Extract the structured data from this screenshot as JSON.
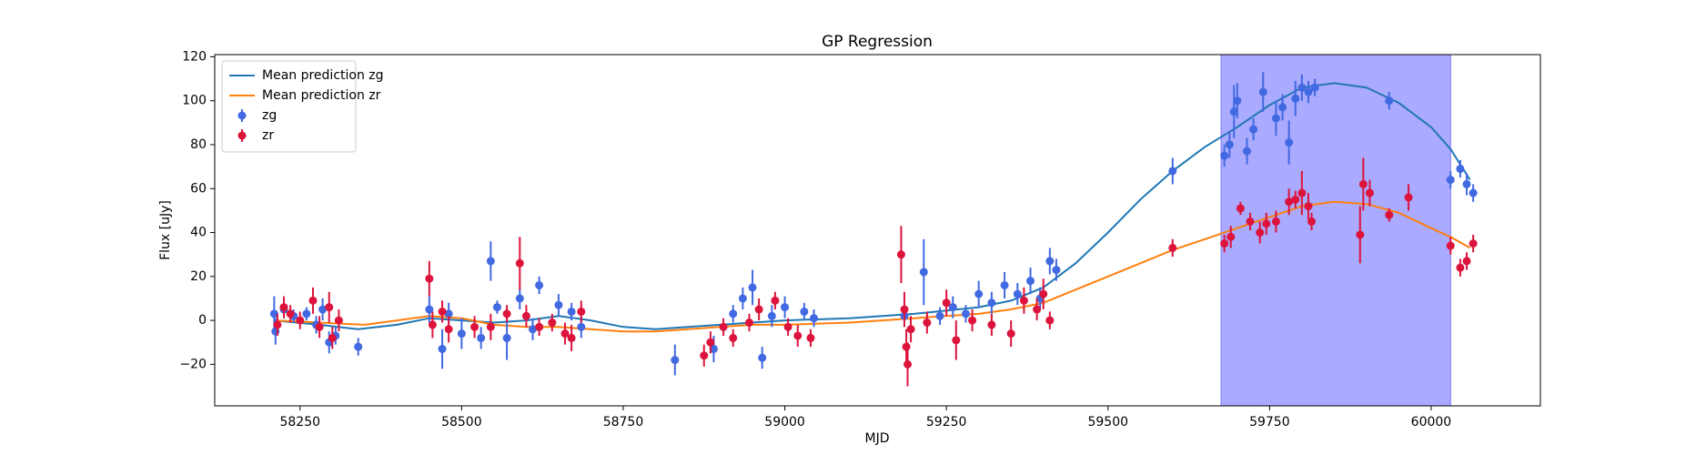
{
  "chart_data": {
    "type": "scatter",
    "title": "GP Regression",
    "xlabel": "MJD",
    "ylabel": "Flux [uJy]",
    "xlim": [
      58118,
      60169
    ],
    "ylim": [
      -38.9,
      121
    ],
    "xticks": [
      58250,
      58500,
      58750,
      59000,
      59250,
      59500,
      59750,
      60000
    ],
    "yticks": [
      {
        "value": -20,
        "label": "−20"
      },
      0,
      20,
      40,
      60,
      80,
      100,
      120
    ],
    "legend": "upper left",
    "spans": [
      {
        "x": [
          59675,
          60030
        ],
        "color": "#aaaaff"
      }
    ],
    "series": [
      {
        "name": "Mean prediction zg",
        "type": "line",
        "color": "#1f77b4",
        "x": [
          58210,
          58280,
          58340,
          58400,
          58450,
          58500,
          58550,
          58600,
          58650,
          58700,
          58750,
          58800,
          58850,
          58900,
          58950,
          59000,
          59100,
          59200,
          59300,
          59350,
          59400,
          59450,
          59500,
          59550,
          59600,
          59650,
          59700,
          59750,
          59800,
          59850,
          59900,
          59950,
          60000,
          60030,
          60060
        ],
        "values": [
          0,
          -2,
          -4,
          -2,
          1,
          0,
          -1,
          0,
          2,
          0,
          -3,
          -4,
          -3,
          -2,
          -1,
          0,
          1,
          3,
          6,
          9,
          15,
          26,
          40,
          55,
          68,
          79,
          88,
          98,
          106,
          108,
          106,
          99,
          88,
          78,
          64
        ]
      },
      {
        "name": "Mean prediction zr",
        "type": "line",
        "color": "#ff7f0e",
        "x": [
          58210,
          58280,
          58350,
          58400,
          58450,
          58500,
          58550,
          58600,
          58650,
          58700,
          58750,
          58800,
          58850,
          58900,
          58950,
          59000,
          59100,
          59200,
          59300,
          59350,
          59400,
          59450,
          59500,
          59550,
          59600,
          59650,
          59700,
          59750,
          59800,
          59850,
          59900,
          59950,
          60000,
          60030,
          60060
        ],
        "values": [
          0,
          -1,
          -2,
          0,
          2,
          1,
          -2,
          -3,
          -3,
          -4,
          -5,
          -5,
          -4,
          -3,
          -2,
          -2,
          -1,
          1,
          3,
          5,
          8,
          14,
          20,
          26,
          32,
          37,
          42,
          47,
          52,
          54,
          53,
          49,
          42,
          38,
          33
        ]
      },
      {
        "name": "zg",
        "type": "errorbar",
        "color": "#4169e1",
        "x": [
          58210,
          58212,
          58225,
          58240,
          58260,
          58275,
          58285,
          58295,
          58305,
          58340,
          58450,
          58470,
          58480,
          58500,
          58530,
          58545,
          58555,
          58570,
          58590,
          58610,
          58620,
          58650,
          58670,
          58685,
          58830,
          58890,
          58920,
          58935,
          58950,
          58965,
          58980,
          59000,
          59030,
          59045,
          59185,
          59215,
          59240,
          59260,
          59280,
          59300,
          59320,
          59340,
          59360,
          59380,
          59395,
          59410,
          59420,
          59600,
          59680,
          59688,
          59695,
          59700,
          59715,
          59725,
          59740,
          59760,
          59770,
          59780,
          59790,
          59800,
          59810,
          59820,
          59935,
          60030,
          60045,
          60055,
          60065
        ],
        "values": [
          3,
          -5,
          5,
          2,
          3,
          -2,
          5,
          -10,
          -7,
          -12,
          5,
          -13,
          3,
          -6,
          -8,
          27,
          6,
          -8,
          10,
          -4,
          16,
          7,
          4,
          -3,
          -18,
          -13,
          3,
          10,
          15,
          -17,
          2,
          6,
          4,
          1,
          2,
          22,
          2,
          6,
          3,
          12,
          8,
          16,
          12,
          18,
          10,
          27,
          23,
          68,
          75,
          80,
          95,
          100,
          77,
          87,
          104,
          92,
          97,
          81,
          101,
          106,
          104,
          106,
          100,
          64,
          69,
          62,
          58
        ],
        "errors": [
          8,
          6,
          4,
          3,
          3,
          4,
          5,
          5,
          4,
          4,
          6,
          9,
          5,
          7,
          5,
          9,
          3,
          10,
          5,
          5,
          4,
          5,
          4,
          5,
          7,
          6,
          4,
          5,
          8,
          5,
          5,
          5,
          4,
          4,
          5,
          15,
          4,
          5,
          4,
          6,
          5,
          6,
          5,
          6,
          5,
          6,
          5,
          6,
          5,
          6,
          12,
          8,
          6,
          5,
          9,
          8,
          6,
          10,
          8,
          6,
          5,
          4,
          4,
          4,
          4,
          5,
          4
        ]
      },
      {
        "name": "zr",
        "type": "errorbar",
        "color": "#dc143c",
        "x": [
          58215,
          58225,
          58235,
          58250,
          58270,
          58280,
          58295,
          58300,
          58310,
          58450,
          58455,
          58470,
          58480,
          58520,
          58545,
          58570,
          58590,
          58600,
          58620,
          58640,
          58660,
          58670,
          58685,
          58875,
          58885,
          58905,
          58920,
          58945,
          58960,
          58985,
          59005,
          59020,
          59040,
          59180,
          59185,
          59188,
          59190,
          59195,
          59220,
          59250,
          59265,
          59290,
          59320,
          59350,
          59370,
          59390,
          59400,
          59410,
          59600,
          59680,
          59690,
          59705,
          59720,
          59735,
          59745,
          59760,
          59780,
          59790,
          59800,
          59810,
          59815,
          59890,
          59895,
          59905,
          59935,
          59965,
          60030,
          60045,
          60055,
          60065
        ],
        "values": [
          -2,
          6,
          3,
          0,
          9,
          -3,
          6,
          -8,
          0,
          19,
          -2,
          4,
          -4,
          -3,
          -3,
          3,
          26,
          2,
          -3,
          -1,
          -6,
          -8,
          4,
          -16,
          -10,
          -3,
          -8,
          -1,
          5,
          9,
          -3,
          -7,
          -8,
          30,
          5,
          -12,
          -20,
          -4,
          -1,
          8,
          -9,
          0,
          -2,
          -6,
          9,
          5,
          12,
          0,
          33,
          35,
          38,
          51,
          45,
          40,
          44,
          45,
          54,
          55,
          58,
          52,
          45,
          39,
          62,
          58,
          48,
          56,
          34,
          24,
          27,
          35
        ],
        "errors": [
          5,
          5,
          4,
          4,
          6,
          5,
          7,
          5,
          5,
          8,
          6,
          5,
          6,
          5,
          6,
          4,
          12,
          5,
          4,
          4,
          5,
          6,
          5,
          5,
          5,
          4,
          4,
          4,
          5,
          4,
          4,
          5,
          4,
          13,
          8,
          8,
          10,
          6,
          5,
          6,
          9,
          5,
          5,
          6,
          6,
          5,
          7,
          4,
          4,
          4,
          5,
          3,
          4,
          5,
          5,
          5,
          6,
          4,
          10,
          6,
          4,
          13,
          12,
          6,
          3,
          6,
          4,
          4,
          4,
          4
        ]
      }
    ]
  }
}
